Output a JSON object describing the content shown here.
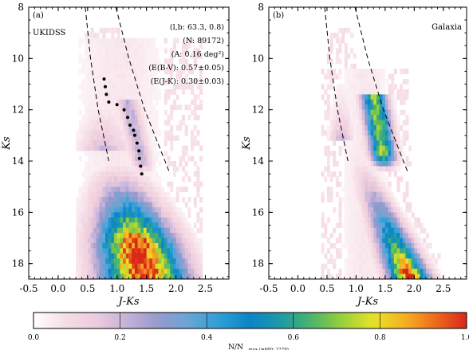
{
  "figure": {
    "panels": [
      {
        "tag": "(a)",
        "label": "UKIDSS",
        "annotations": [
          "(l,b: 63.3, 0.8)",
          "(N: 89172)",
          "(A: 0.16 deg²)",
          "(E(B-V): 0.57±0.05)",
          "(E(J-K): 0.30±0.03)"
        ]
      },
      {
        "tag": "(b)",
        "label": "Galaxia",
        "annotations": []
      }
    ],
    "xlabel": "J-Ks",
    "ylabel": "Ks",
    "colorbar_label": "N/N",
    "colorbar_label_sub": "max (=680; 2279)",
    "colorbar_ticks": [
      "0.0",
      "0.2",
      "0.4",
      "0.6",
      "0.8",
      "1.0"
    ],
    "colormap": [
      "#ffffff",
      "#f6dde6",
      "#eeccdc",
      "#c4b3da",
      "#9799cc",
      "#6aa5d6",
      "#2e9fd6",
      "#0a84c6",
      "#1f9aa6",
      "#4bb56a",
      "#9bd038",
      "#e8e428",
      "#f5b022",
      "#ef6a1c",
      "#d8281a"
    ]
  },
  "chart_data": [
    {
      "type": "heatmap",
      "title": "UKIDSS",
      "xlabel": "J-Ks",
      "ylabel": "Ks",
      "xlim": [
        -0.5,
        2.9
      ],
      "ylim": [
        18.6,
        8.0
      ],
      "xticks": [
        -0.5,
        0.0,
        0.5,
        1.0,
        1.5,
        2.0,
        2.5
      ],
      "yticks": [
        8,
        10,
        12,
        14,
        16,
        18
      ],
      "bin": {
        "dx": 0.05,
        "dy": 0.2
      },
      "density_model": {
        "clump": {
          "x0": 1.18,
          "dxdy": 0.1,
          "k0": 11.6,
          "k1": 14.0,
          "w": 0.12,
          "amp": 0.22
        },
        "dwarfs": {
          "x0": 0.68,
          "dxdy": 0.11,
          "k0": 13.6,
          "w": 0.3,
          "amp": 1.0,
          "peak_k": 17.2
        },
        "halo": {
          "x0": 1.05,
          "w": 0.55,
          "k0": 9.2,
          "amp": 0.05
        },
        "xmin_cut": 0.3
      },
      "extinction_curves": [
        {
          "name": "dashed-left",
          "points": [
            [
              0.46,
              8.0
            ],
            [
              0.55,
              10.0
            ],
            [
              0.68,
              12.0
            ],
            [
              0.86,
              14.0
            ]
          ]
        },
        {
          "name": "dashed-right",
          "points": [
            [
              0.98,
              8.0
            ],
            [
              1.2,
              10.0
            ],
            [
              1.47,
              12.0
            ],
            [
              1.9,
              14.5
            ]
          ]
        }
      ],
      "red_clump_ridge": [
        [
          0.78,
          10.8
        ],
        [
          0.8,
          11.1
        ],
        [
          0.82,
          11.4
        ],
        [
          0.86,
          11.7
        ],
        [
          1.0,
          11.8
        ],
        [
          1.12,
          12.0
        ],
        [
          1.18,
          12.3
        ],
        [
          1.22,
          12.6
        ],
        [
          1.28,
          12.8
        ],
        [
          1.3,
          13.0
        ],
        [
          1.34,
          13.3
        ],
        [
          1.37,
          13.6
        ],
        [
          1.38,
          13.9
        ],
        [
          1.4,
          14.2
        ],
        [
          1.42,
          14.5
        ]
      ]
    },
    {
      "type": "heatmap",
      "title": "Galaxia",
      "xlabel": "J-Ks",
      "ylabel": "Ks",
      "xlim": [
        -0.5,
        2.9
      ],
      "ylim": [
        18.6,
        8.0
      ],
      "xticks": [
        -0.5,
        0.0,
        0.5,
        1.0,
        1.5,
        2.0,
        2.5
      ],
      "yticks": [
        8,
        10,
        12,
        14,
        16,
        18
      ],
      "bin": {
        "dx": 0.05,
        "dy": 0.2
      },
      "density_model": {
        "clump": {
          "x0": 1.3,
          "dxdy": 0.07,
          "k0": 11.4,
          "k1": 13.8,
          "w": 0.14,
          "amp": 0.72
        },
        "dwarfs": {
          "x0": 0.65,
          "dxdy": 0.19,
          "k0": 13.2,
          "w": 0.14,
          "amp": 1.0,
          "peak_k": 18.6
        },
        "halo": {
          "x0": 1.15,
          "w": 0.3,
          "k0": 10.4,
          "amp": 0.05
        },
        "xmin_cut": 0.4
      },
      "extinction_curves": [
        {
          "name": "dashed-left",
          "points": [
            [
              0.46,
              8.0
            ],
            [
              0.55,
              10.0
            ],
            [
              0.68,
              12.0
            ],
            [
              0.86,
              14.0
            ]
          ]
        },
        {
          "name": "dashed-right",
          "points": [
            [
              0.98,
              8.0
            ],
            [
              1.2,
              10.0
            ],
            [
              1.47,
              12.0
            ],
            [
              1.9,
              14.5
            ]
          ]
        }
      ],
      "red_clump_ridge": []
    }
  ]
}
